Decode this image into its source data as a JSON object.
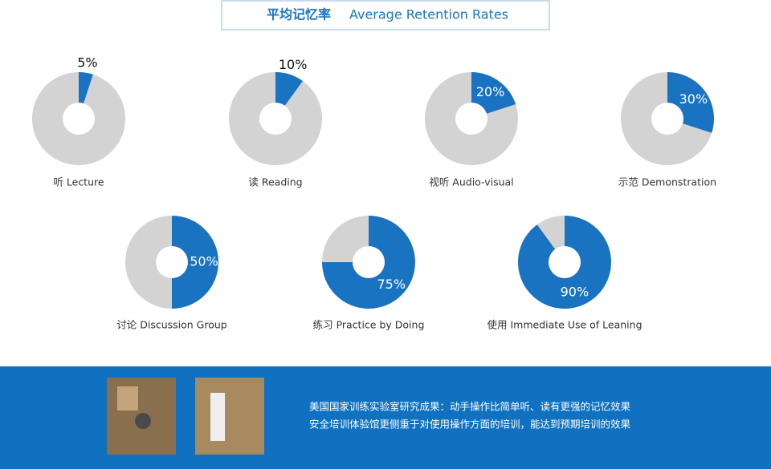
{
  "title": {
    "cn": "平均记忆率",
    "en": "Average Retention Rates"
  },
  "chart_data": [
    {
      "type": "donut",
      "label": "听 Lecture",
      "values": [
        5,
        95
      ],
      "value_labels": [
        "5%",
        null
      ],
      "colors": [
        "#1a73c1",
        "#d3d3d3"
      ]
    },
    {
      "type": "donut",
      "label": "读 Reading",
      "values": [
        10,
        90
      ],
      "value_labels": [
        "10%",
        null
      ],
      "colors": [
        "#1a73c1",
        "#d3d3d3"
      ]
    },
    {
      "type": "donut",
      "label": "视听 Audio-visual",
      "values": [
        20,
        80
      ],
      "value_labels": [
        "20%",
        null
      ],
      "colors": [
        "#1a73c1",
        "#d3d3d3"
      ]
    },
    {
      "type": "donut",
      "label": "示范 Demonstration",
      "values": [
        30,
        70
      ],
      "value_labels": [
        "30%",
        null
      ],
      "colors": [
        "#1a73c1",
        "#d3d3d3"
      ]
    },
    {
      "type": "donut",
      "label": "讨论 Discussion Group",
      "values": [
        50,
        50
      ],
      "value_labels": [
        "50%",
        null
      ],
      "colors": [
        "#1a73c1",
        "#d3d3d3"
      ]
    },
    {
      "type": "donut",
      "label": "练习 Practice by Doing",
      "values": [
        75,
        25
      ],
      "value_labels": [
        "75%",
        null
      ],
      "colors": [
        "#1a73c1",
        "#d3d3d3"
      ]
    },
    {
      "type": "donut",
      "label": "使用 Immediate Use of Leaning",
      "values": [
        90,
        10
      ],
      "value_labels": [
        "90%",
        null
      ],
      "colors": [
        "#1a73c1",
        "#d3d3d3"
      ]
    }
  ],
  "footer": {
    "lines": [
      "美国国家训练实验室研究成果：动手操作比简单听、读有更强的记忆效果",
      "安全培训体验馆更侧重于对使用操作方面的培训，能达到预期培训的效果"
    ]
  }
}
